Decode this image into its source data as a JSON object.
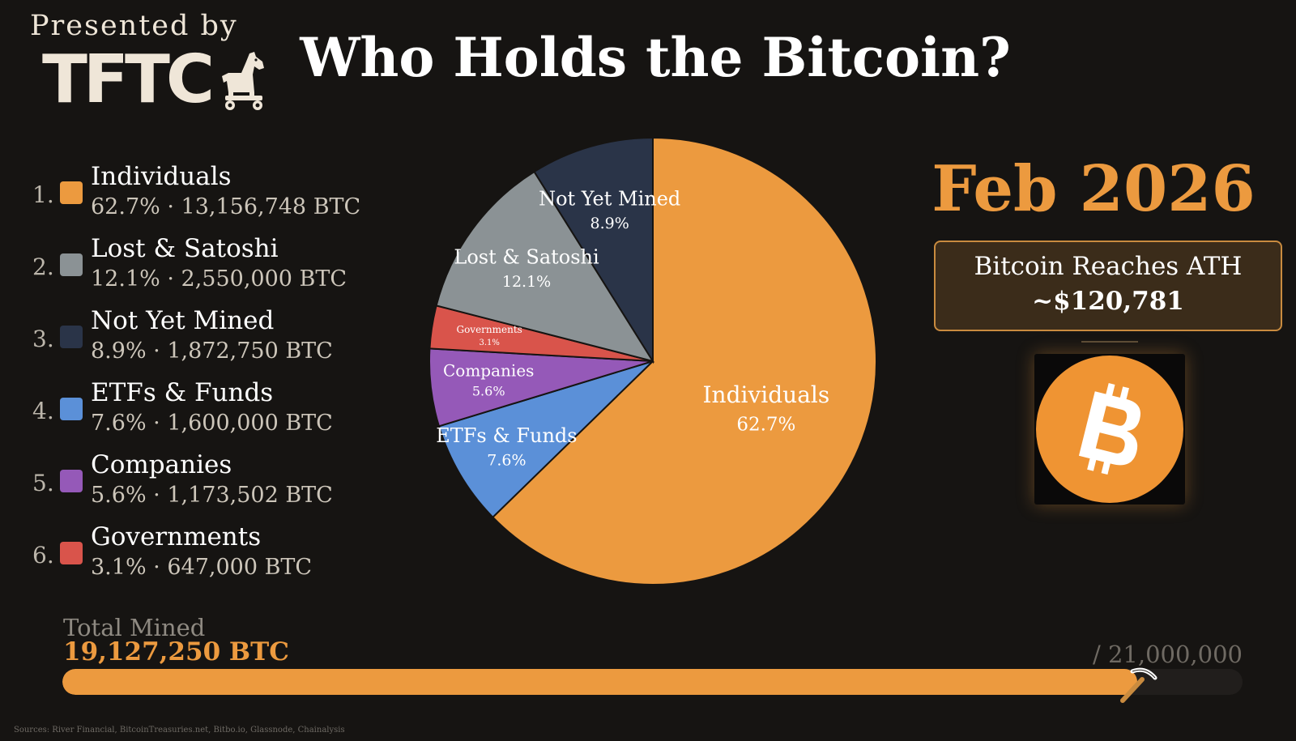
{
  "header": {
    "presented_by": "Presented by",
    "logo_text": "TFTC",
    "title": "Who Holds the Bitcoin?"
  },
  "legend": [
    {
      "rank": "1.",
      "name": "Individuals",
      "stats": "62.7% · 13,156,748 BTC",
      "color": "#ec9a3f"
    },
    {
      "rank": "2.",
      "name": "Lost & Satoshi",
      "stats": "12.1% · 2,550,000 BTC",
      "color": "#8b9295"
    },
    {
      "rank": "3.",
      "name": "Not Yet Mined",
      "stats": "8.9% · 1,872,750 BTC",
      "color": "#2a3448"
    },
    {
      "rank": "4.",
      "name": "ETFs & Funds",
      "stats": "7.6% · 1,600,000 BTC",
      "color": "#5b90d8"
    },
    {
      "rank": "5.",
      "name": "Companies",
      "stats": "5.6% · 1,173,502 BTC",
      "color": "#9559b8"
    },
    {
      "rank": "6.",
      "name": "Governments",
      "stats": "3.1% · 647,000 BTC",
      "color": "#d9544b"
    }
  ],
  "chart_data": {
    "type": "pie",
    "title": "Who Holds the Bitcoin?",
    "units": "BTC",
    "start_angle_deg": 0,
    "direction": "clockwise",
    "slices": [
      {
        "label": "Individuals",
        "percent": 62.7,
        "value": 13156748,
        "pct_label": "62.7%",
        "color": "#ec9a3f"
      },
      {
        "label": "ETFs & Funds",
        "percent": 7.6,
        "value": 1600000,
        "pct_label": "7.6%",
        "color": "#5b90d8"
      },
      {
        "label": "Companies",
        "percent": 5.6,
        "value": 1173502,
        "pct_label": "5.6%",
        "color": "#9559b8"
      },
      {
        "label": "Governments",
        "percent": 3.1,
        "value": 647000,
        "pct_label": "3.1%",
        "color": "#d9544b"
      },
      {
        "label": "Lost & Satoshi",
        "percent": 12.1,
        "value": 2550000,
        "pct_label": "12.1%",
        "color": "#8b9295"
      },
      {
        "label": "Not Yet Mined",
        "percent": 8.9,
        "value": 1872750,
        "pct_label": "8.9%",
        "color": "#2a3448"
      }
    ]
  },
  "period": "Feb 2026",
  "event": {
    "headline": "Bitcoin Reaches ATH",
    "price": "~$120,781"
  },
  "supply": {
    "total_label": "Total Mined",
    "total_value": "19,127,250 BTC",
    "cap_label": "/ 21,000,000",
    "mined_fraction": 0.91082
  },
  "sources": "Sources: River Financial, BitcoinTreasuries.net, Bitbo.io, Glassnode, Chainalysis",
  "icons": {
    "logo_mascot": "trojan-horse-icon",
    "coin": "bitcoin-icon",
    "progress_marker": "pickaxe-icon"
  }
}
